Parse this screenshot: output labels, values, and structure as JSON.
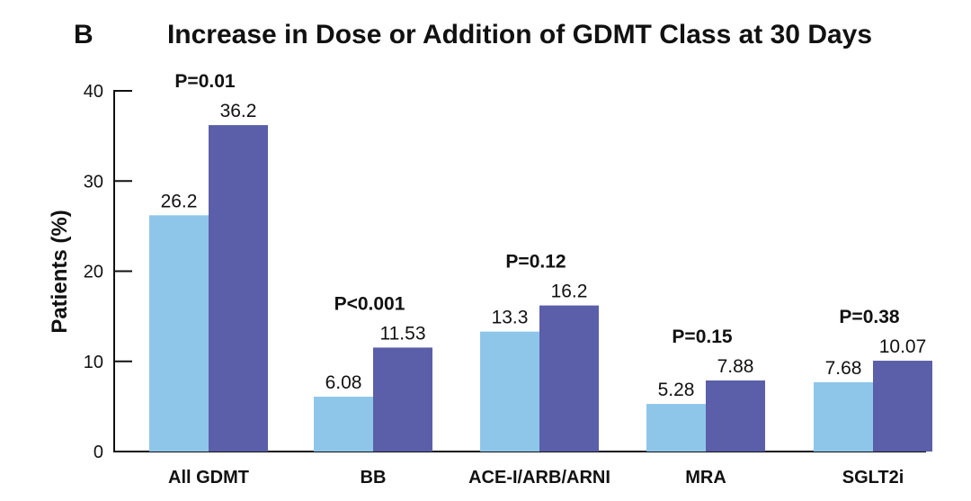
{
  "panel_label": "B",
  "colors": {
    "series_1": "#8ec6ea",
    "series_2": "#5b5ea8",
    "axis": "#111111"
  },
  "chart_data": {
    "type": "bar",
    "title": "Increase in Dose or Addition of GDMT Class at 30 Days",
    "xlabel": "",
    "ylabel": "Patients (%)",
    "ylim": [
      0,
      40
    ],
    "yticks": [
      0,
      10,
      20,
      30,
      40
    ],
    "grid": false,
    "legend": "none",
    "categories": [
      "All GDMT",
      "BB",
      "ACE-I/ARB/ARNI",
      "MRA",
      "SGLT2i"
    ],
    "series": [
      {
        "values": [
          26.2,
          6.08,
          13.3,
          5.28,
          7.68
        ],
        "labels": [
          "26.2",
          "6.08",
          "13.3",
          "5.28",
          "7.68"
        ]
      },
      {
        "values": [
          36.2,
          11.53,
          16.2,
          7.88,
          10.07
        ],
        "labels": [
          "36.2",
          "11.53",
          "16.2",
          "7.88",
          "10.07"
        ]
      }
    ],
    "p_values": [
      "P=0.01",
      "P<0.001",
      "P=0.12",
      "P=0.15",
      "P=0.38"
    ]
  }
}
